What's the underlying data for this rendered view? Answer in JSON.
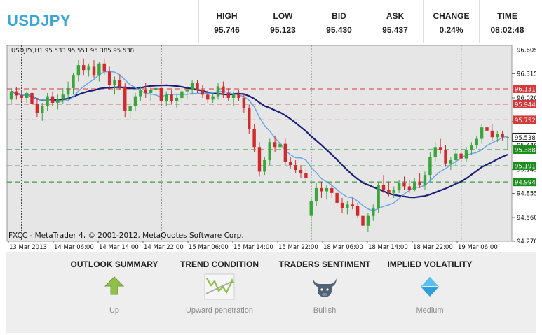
{
  "header": {
    "symbol": "USDJPY",
    "stats": [
      {
        "label": "HIGH",
        "value": "95.746"
      },
      {
        "label": "LOW",
        "value": "95.123"
      },
      {
        "label": "BID",
        "value": "95.430"
      },
      {
        "label": "ASK",
        "value": "95.437"
      },
      {
        "label": "CHANGE",
        "value": "0.24%"
      },
      {
        "label": "TIME",
        "value": "08:02:48"
      }
    ]
  },
  "chart_data": {
    "type": "candlestick",
    "info": "USDJPY,H1  95.533 95.551 95.385 95.538",
    "copyright": "FXCC - MetaTrader 4, © 2001-2012, MetaQuotes Software Corp.",
    "ylim": [
      94.27,
      96.66
    ],
    "y_ticks": [
      "96.605",
      "96.315",
      "96.020",
      "95.730",
      "95.440",
      "95.145",
      "94.855",
      "94.560",
      "94.270"
    ],
    "x_labels": [
      "13 Mar 2013",
      "14 Mar 06:00",
      "14 Mar 14:00",
      "14 Mar 22:00",
      "15 Mar 06:00",
      "15 Mar 14:00",
      "15 Mar 22:00",
      "18 Mar 06:00",
      "18 Mar 14:00",
      "18 Mar 22:00",
      "19 Mar 06:00"
    ],
    "day_separators": [
      2,
      29,
      58,
      87
    ],
    "current_price": {
      "value": 95.538,
      "label": "95.538"
    },
    "levels": [
      {
        "value": 96.131,
        "label": "96.131",
        "type": "resistance",
        "color": "#d43a3a"
      },
      {
        "value": 95.944,
        "label": "95.944",
        "type": "resistance",
        "color": "#d43a3a"
      },
      {
        "value": 95.752,
        "label": "95.752",
        "type": "resistance",
        "color": "#d43a3a"
      },
      {
        "value": 95.388,
        "label": "95.388",
        "type": "support",
        "color": "#1e8c1e"
      },
      {
        "value": 95.191,
        "label": "95.191",
        "type": "support",
        "color": "#1e8c1e"
      },
      {
        "value": 94.994,
        "label": "94.994",
        "type": "support",
        "color": "#1e8c1e"
      }
    ],
    "colors": {
      "bull": "#3aa53a",
      "bear": "#d22a2a",
      "fast_ma": "#6aa6e8",
      "slow_ma": "#1a1f7a",
      "plot_bg": "#e6e6e6"
    },
    "candles": [
      [
        96.0,
        96.14,
        95.94,
        96.1
      ],
      [
        96.1,
        96.15,
        96.0,
        96.05
      ],
      [
        96.05,
        96.12,
        95.98,
        96.02
      ],
      [
        96.02,
        96.1,
        95.96,
        96.08
      ],
      [
        96.08,
        96.15,
        95.9,
        95.95
      ],
      [
        95.95,
        96.02,
        95.78,
        95.84
      ],
      [
        95.84,
        95.96,
        95.74,
        95.92
      ],
      [
        95.92,
        96.08,
        95.86,
        96.04
      ],
      [
        96.04,
        96.1,
        95.92,
        95.96
      ],
      [
        95.96,
        96.06,
        95.88,
        96.0
      ],
      [
        96.0,
        96.14,
        95.95,
        96.06
      ],
      [
        96.06,
        96.22,
        96.0,
        96.14
      ],
      [
        96.14,
        96.32,
        96.06,
        96.3
      ],
      [
        96.3,
        96.48,
        96.22,
        96.42
      ],
      [
        96.42,
        96.5,
        96.3,
        96.36
      ],
      [
        96.36,
        96.44,
        96.28,
        96.4
      ],
      [
        96.4,
        96.48,
        96.26,
        96.3
      ],
      [
        96.3,
        96.46,
        96.22,
        96.44
      ],
      [
        96.44,
        96.5,
        96.3,
        96.34
      ],
      [
        96.34,
        96.4,
        96.12,
        96.18
      ],
      [
        96.18,
        96.28,
        96.06,
        96.24
      ],
      [
        96.24,
        96.3,
        96.12,
        96.16
      ],
      [
        96.16,
        96.2,
        95.78,
        95.86
      ],
      [
        95.86,
        95.96,
        95.76,
        95.92
      ],
      [
        95.92,
        96.08,
        95.86,
        96.04
      ],
      [
        96.04,
        96.16,
        95.98,
        96.12
      ],
      [
        96.12,
        96.2,
        96.02,
        96.08
      ],
      [
        96.08,
        96.16,
        95.98,
        96.12
      ],
      [
        96.12,
        96.2,
        96.04,
        96.14
      ],
      [
        96.14,
        96.24,
        95.94,
        95.98
      ],
      [
        95.98,
        96.1,
        95.92,
        96.06
      ],
      [
        96.06,
        96.12,
        95.94,
        95.98
      ],
      [
        95.98,
        96.06,
        95.9,
        96.02
      ],
      [
        96.02,
        96.14,
        95.96,
        96.1
      ],
      [
        96.1,
        96.16,
        96.0,
        96.12
      ],
      [
        96.12,
        96.24,
        96.06,
        96.2
      ],
      [
        96.2,
        96.24,
        96.08,
        96.12
      ],
      [
        96.12,
        96.18,
        96.02,
        96.06
      ],
      [
        96.06,
        96.12,
        95.96,
        96.0
      ],
      [
        96.0,
        96.08,
        95.96,
        96.04
      ],
      [
        96.04,
        96.2,
        96.0,
        96.16
      ],
      [
        96.16,
        96.22,
        96.02,
        96.08
      ],
      [
        96.08,
        96.14,
        95.98,
        96.02
      ],
      [
        96.02,
        96.1,
        95.92,
        96.06
      ],
      [
        96.06,
        96.12,
        95.98,
        96.02
      ],
      [
        96.02,
        96.08,
        95.84,
        95.9
      ],
      [
        95.9,
        95.94,
        95.58,
        95.64
      ],
      [
        95.64,
        95.7,
        95.36,
        95.42
      ],
      [
        95.42,
        95.48,
        95.06,
        95.12
      ],
      [
        95.12,
        95.3,
        95.08,
        95.26
      ],
      [
        95.26,
        95.52,
        95.2,
        95.48
      ],
      [
        95.48,
        95.56,
        95.36,
        95.42
      ],
      [
        95.42,
        95.5,
        95.34,
        95.46
      ],
      [
        95.46,
        95.52,
        95.2,
        95.24
      ],
      [
        95.24,
        95.3,
        95.16,
        95.2
      ],
      [
        95.2,
        95.26,
        95.1,
        95.14
      ],
      [
        95.14,
        95.2,
        95.04,
        95.1
      ],
      [
        95.1,
        95.16,
        94.98,
        95.04
      ],
      [
        94.58,
        94.82,
        94.34,
        94.76
      ],
      [
        94.76,
        94.98,
        94.7,
        94.92
      ],
      [
        94.92,
        95.0,
        94.8,
        94.88
      ],
      [
        94.88,
        94.96,
        94.78,
        94.92
      ],
      [
        94.92,
        94.98,
        94.8,
        94.86
      ],
      [
        94.86,
        94.9,
        94.7,
        94.74
      ],
      [
        94.74,
        94.8,
        94.62,
        94.68
      ],
      [
        94.68,
        94.76,
        94.6,
        94.72
      ],
      [
        94.72,
        94.8,
        94.66,
        94.7
      ],
      [
        94.7,
        94.74,
        94.56,
        94.58
      ],
      [
        94.58,
        94.64,
        94.4,
        94.46
      ],
      [
        94.46,
        94.62,
        94.38,
        94.58
      ],
      [
        94.58,
        94.72,
        94.52,
        94.68
      ],
      [
        94.68,
        95.0,
        94.62,
        94.96
      ],
      [
        94.96,
        95.08,
        94.86,
        94.9
      ],
      [
        94.9,
        95.0,
        94.82,
        94.86
      ],
      [
        94.86,
        94.94,
        94.8,
        94.9
      ],
      [
        94.9,
        95.02,
        94.86,
        94.98
      ],
      [
        94.98,
        95.06,
        94.9,
        94.94
      ],
      [
        94.94,
        95.02,
        94.86,
        94.9
      ],
      [
        94.9,
        95.04,
        94.88,
        95.0
      ],
      [
        95.0,
        95.1,
        94.92,
        94.96
      ],
      [
        94.96,
        95.12,
        94.9,
        95.08
      ],
      [
        95.08,
        95.36,
        95.02,
        95.3
      ],
      [
        95.3,
        95.48,
        95.24,
        95.42
      ],
      [
        95.42,
        95.52,
        95.34,
        95.38
      ],
      [
        95.38,
        95.44,
        95.18,
        95.22
      ],
      [
        95.22,
        95.3,
        95.14,
        95.26
      ],
      [
        95.26,
        95.38,
        95.2,
        95.34
      ],
      [
        95.34,
        95.4,
        95.24,
        95.28
      ],
      [
        95.28,
        95.42,
        95.24,
        95.38
      ],
      [
        95.38,
        95.48,
        95.32,
        95.44
      ],
      [
        95.44,
        95.56,
        95.4,
        95.52
      ],
      [
        95.52,
        95.7,
        95.46,
        95.66
      ],
      [
        95.66,
        95.74,
        95.56,
        95.62
      ],
      [
        95.62,
        95.7,
        95.5,
        95.54
      ],
      [
        95.54,
        95.62,
        95.48,
        95.58
      ],
      [
        95.58,
        95.62,
        95.5,
        95.54
      ],
      [
        95.53,
        95.55,
        95.39,
        95.54
      ]
    ]
  },
  "summary": [
    {
      "title": "OUTLOOK SUMMARY",
      "label": "Up",
      "icon": "up-arrow-icon"
    },
    {
      "title": "TREND CONDITION",
      "label": "Upward penetration",
      "icon": "trend-penetration-icon"
    },
    {
      "title": "TRADERS SENTIMENT",
      "label": "Bullish",
      "icon": "bull-icon"
    },
    {
      "title": "IMPLIED VOLATILITY",
      "label": "Medium",
      "icon": "diamond-icon"
    }
  ]
}
